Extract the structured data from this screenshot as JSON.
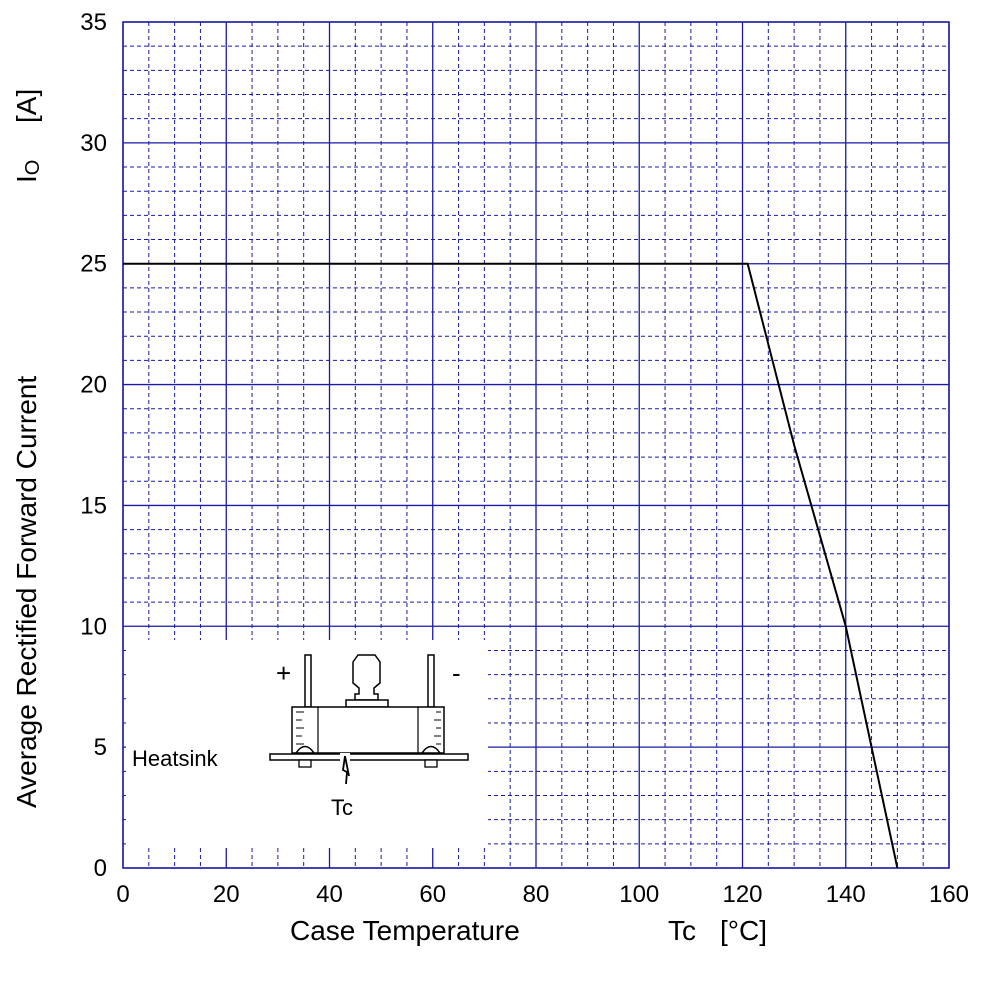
{
  "chart_data": {
    "type": "line",
    "xlim": [
      0,
      160
    ],
    "ylim": [
      0,
      35
    ],
    "x_ticks": [
      0,
      20,
      40,
      60,
      80,
      100,
      120,
      140,
      160
    ],
    "y_ticks": [
      0,
      5,
      10,
      15,
      20,
      25,
      30,
      35
    ],
    "x_minor_step": 5,
    "y_minor_step": 1,
    "grid": true,
    "grid_color": "#1a1aa6",
    "line_color": "#000000",
    "series": [
      {
        "x": [
          0,
          121,
          130,
          140,
          150
        ],
        "y": [
          25,
          25,
          17.5,
          10,
          0
        ]
      }
    ],
    "xlabel_main": "Case Temperature",
    "xlabel_symbol": "Tc",
    "xlabel_unit": "[°C]",
    "ylabel_main": "Average Rectified Forward Current",
    "ylabel_symbol": "I",
    "ylabel_symbol_sub": "O",
    "ylabel_unit": "[A]"
  },
  "inset": {
    "plus_sign": "+",
    "minus_sign": "-",
    "heatsink_label": "Heatsink",
    "tc_label": "Tc"
  }
}
